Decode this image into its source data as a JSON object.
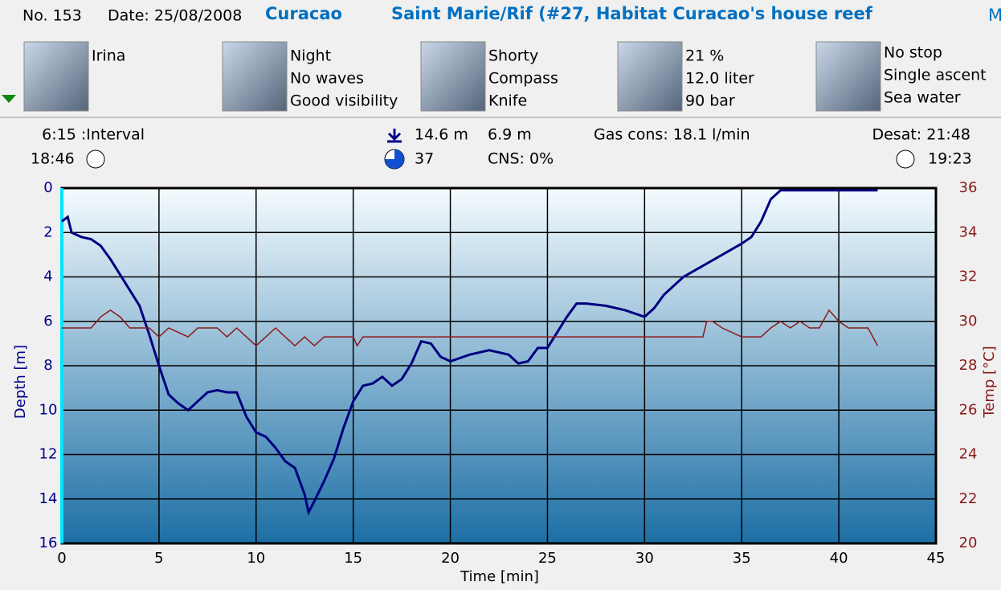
{
  "header": {
    "number": "No. 153",
    "date": "Date: 25/08/2008",
    "location": "Curacao",
    "site": "Saint Marie/Rif (#27, Habitat Curacao's house reef",
    "overflow": "M"
  },
  "panels": [
    {
      "lines": [
        "Irina"
      ]
    },
    {
      "lines": [
        "Night",
        "No waves",
        "Good visibility"
      ]
    },
    {
      "lines": [
        "Shorty",
        "Compass",
        "Knife"
      ]
    },
    {
      "lines": [
        "21 %",
        "12.0 liter",
        "90 bar"
      ]
    },
    {
      "lines": [
        "No stop",
        "Single ascent",
        "Sea water"
      ]
    }
  ],
  "stats": {
    "interval": "6:15 :Interval",
    "start": "18:46",
    "max_depth": "14.6 m",
    "avg_depth": "6.9 m",
    "gas": "Gas cons: 18.1 l/min",
    "desat": "Desat: 21:48",
    "duration": "37",
    "cns": "CNS:  0%",
    "end": "19:23"
  },
  "chart_data": {
    "type": "line",
    "xlabel": "Time [min]",
    "ylabel": "Depth [m]",
    "y2label": "Temp [°C]",
    "xlim": [
      0,
      45
    ],
    "xticks": [
      0,
      5,
      10,
      15,
      20,
      25,
      30,
      35,
      40,
      45
    ],
    "ylim": [
      16,
      0
    ],
    "yticks": [
      0,
      2,
      4,
      6,
      8,
      10,
      12,
      14,
      16
    ],
    "y2lim": [
      20,
      36
    ],
    "y2ticks": [
      20,
      22,
      24,
      26,
      28,
      30,
      32,
      34,
      36
    ],
    "grid": true,
    "series": [
      {
        "color": "#000080",
        "x": [
          0,
          0.3,
          0.5,
          1,
          1.5,
          2,
          2.5,
          3,
          3.5,
          4,
          4.5,
          5,
          5.5,
          6,
          6.5,
          7,
          7.5,
          8,
          8.5,
          9,
          9.5,
          10,
          10.5,
          11,
          11.5,
          12,
          12.5,
          12.7,
          13,
          13.5,
          14,
          14.5,
          15,
          15.5,
          16,
          16.5,
          17,
          17.5,
          18,
          18.5,
          19,
          19.5,
          20,
          21,
          22,
          23,
          23.5,
          24,
          24.5,
          25,
          25.5,
          26,
          26.5,
          27,
          28,
          29,
          30,
          30.5,
          31,
          32,
          33,
          34,
          35,
          35.5,
          36,
          36.5,
          37,
          38,
          40,
          42
        ],
        "values": [
          1.5,
          1.3,
          2.0,
          2.2,
          2.3,
          2.6,
          3.2,
          3.9,
          4.6,
          5.3,
          6.6,
          8.0,
          9.3,
          9.7,
          10.0,
          9.6,
          9.2,
          9.1,
          9.2,
          9.2,
          10.3,
          11.0,
          11.2,
          11.7,
          12.3,
          12.6,
          13.8,
          14.6,
          14.1,
          13.2,
          12.2,
          10.8,
          9.6,
          8.9,
          8.8,
          8.5,
          8.9,
          8.6,
          7.9,
          6.9,
          7.0,
          7.6,
          7.8,
          7.5,
          7.3,
          7.5,
          7.9,
          7.8,
          7.2,
          7.2,
          6.5,
          5.8,
          5.2,
          5.2,
          5.3,
          5.5,
          5.8,
          5.4,
          4.8,
          4.0,
          3.5,
          3.0,
          2.5,
          2.2,
          1.5,
          0.5,
          0.1,
          0.1,
          0.1,
          0.1
        ]
      },
      {
        "color": "#8b1a1a",
        "axis": "y2",
        "x": [
          0,
          1.5,
          2,
          2.5,
          3,
          3.5,
          4.5,
          5,
          5.5,
          6,
          6.5,
          7,
          8,
          8.5,
          9,
          9.5,
          10,
          10.5,
          11,
          11.5,
          12,
          12.5,
          13,
          13.5,
          15,
          15.2,
          15.5,
          33,
          33.2,
          33.5,
          34,
          35,
          36,
          36.5,
          37,
          37.5,
          38,
          38.5,
          39,
          39.5,
          40,
          40.5,
          41.5,
          42
        ],
        "values": [
          29.7,
          29.7,
          30.2,
          30.5,
          30.2,
          29.7,
          29.7,
          29.3,
          29.7,
          29.5,
          29.3,
          29.7,
          29.7,
          29.3,
          29.7,
          29.3,
          28.9,
          29.3,
          29.7,
          29.3,
          28.9,
          29.3,
          28.9,
          29.3,
          29.3,
          28.9,
          29.3,
          29.3,
          30.0,
          30.0,
          29.7,
          29.3,
          29.3,
          29.7,
          30.0,
          29.7,
          30.0,
          29.7,
          29.7,
          30.5,
          30.0,
          29.7,
          29.7,
          28.9
        ]
      }
    ]
  }
}
